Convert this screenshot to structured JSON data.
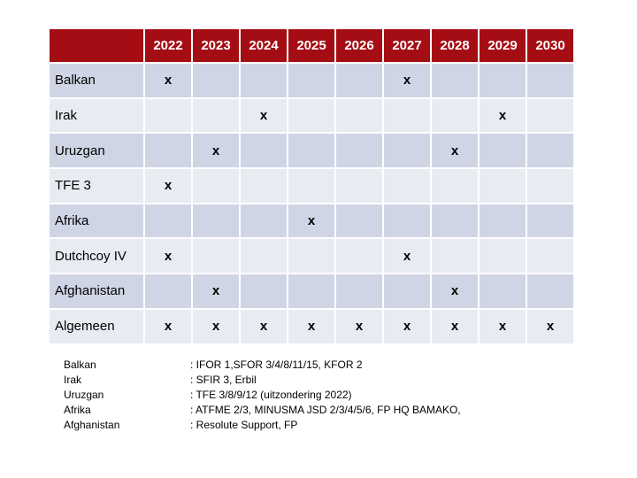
{
  "table": {
    "years": [
      "2022",
      "2023",
      "2024",
      "2025",
      "2026",
      "2027",
      "2028",
      "2029",
      "2030"
    ],
    "rows": [
      {
        "label": "Balkan",
        "cells": [
          "x",
          "",
          "",
          "",
          "",
          "x",
          "",
          "",
          ""
        ]
      },
      {
        "label": "Irak",
        "cells": [
          "",
          "",
          "x",
          "",
          "",
          "",
          "",
          "x",
          ""
        ]
      },
      {
        "label": "Uruzgan",
        "cells": [
          "",
          "x",
          "",
          "",
          "",
          "",
          "x",
          "",
          ""
        ]
      },
      {
        "label": "TFE 3",
        "cells": [
          "x",
          "",
          "",
          "",
          "",
          "",
          "",
          "",
          ""
        ]
      },
      {
        "label": "Afrika",
        "cells": [
          "",
          "",
          "",
          "x",
          "",
          "",
          "",
          "",
          ""
        ]
      },
      {
        "label": "Dutchcoy IV",
        "cells": [
          "x",
          "",
          "",
          "",
          "",
          "x",
          "",
          "",
          ""
        ]
      },
      {
        "label": "Afghanistan",
        "cells": [
          "",
          "x",
          "",
          "",
          "",
          "",
          "x",
          "",
          ""
        ]
      },
      {
        "label": "Algemeen",
        "cells": [
          "x",
          "x",
          "x",
          "x",
          "x",
          "x",
          "x",
          "x",
          "x"
        ]
      }
    ]
  },
  "legend": [
    {
      "name": "Balkan",
      "desc": ": IFOR 1,SFOR 3/4/8/11/15, KFOR 2"
    },
    {
      "name": "Irak",
      "desc": ": SFIR 3, Erbil"
    },
    {
      "name": "Uruzgan",
      "desc": ": TFE 3/8/9/12 (uitzondering 2022)"
    },
    {
      "name": "Afrika",
      "desc": ": ATFME 2/3, MINUSMA JSD 2/3/4/5/6, FP HQ BAMAKO,"
    },
    {
      "name": "Afghanistan",
      "desc": ": Resolute Support, FP"
    }
  ],
  "colors": {
    "header_bg": "#a50d14",
    "row_dark": "#cfd5e5",
    "row_light": "#e8ebf2"
  }
}
